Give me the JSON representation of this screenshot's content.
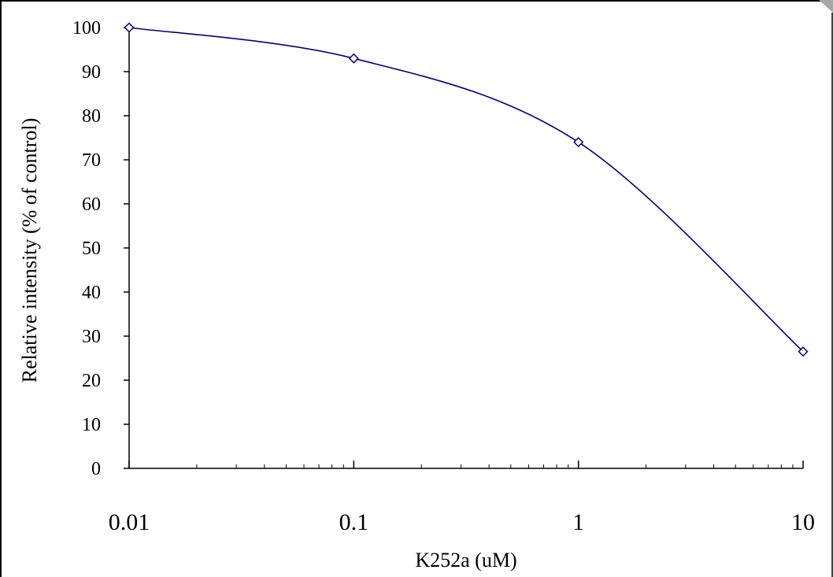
{
  "chart_data": {
    "type": "line",
    "title": "",
    "xlabel": "K252a (uM)",
    "ylabel": "Relative intensity (% of control)",
    "x_scale": "log",
    "xlim": [
      0.01,
      10
    ],
    "ylim": [
      0,
      100
    ],
    "x_ticks": [
      "0.01",
      "0.1",
      "1",
      "10"
    ],
    "y_ticks": [
      "0",
      "10",
      "20",
      "30",
      "40",
      "50",
      "60",
      "70",
      "80",
      "90",
      "100"
    ],
    "grid": false,
    "legend": "none",
    "series": [
      {
        "marker": "diamond",
        "color": "#000080",
        "x": [
          0.01,
          0.1,
          1,
          10
        ],
        "y": [
          100,
          93,
          74,
          26.5
        ]
      }
    ]
  }
}
